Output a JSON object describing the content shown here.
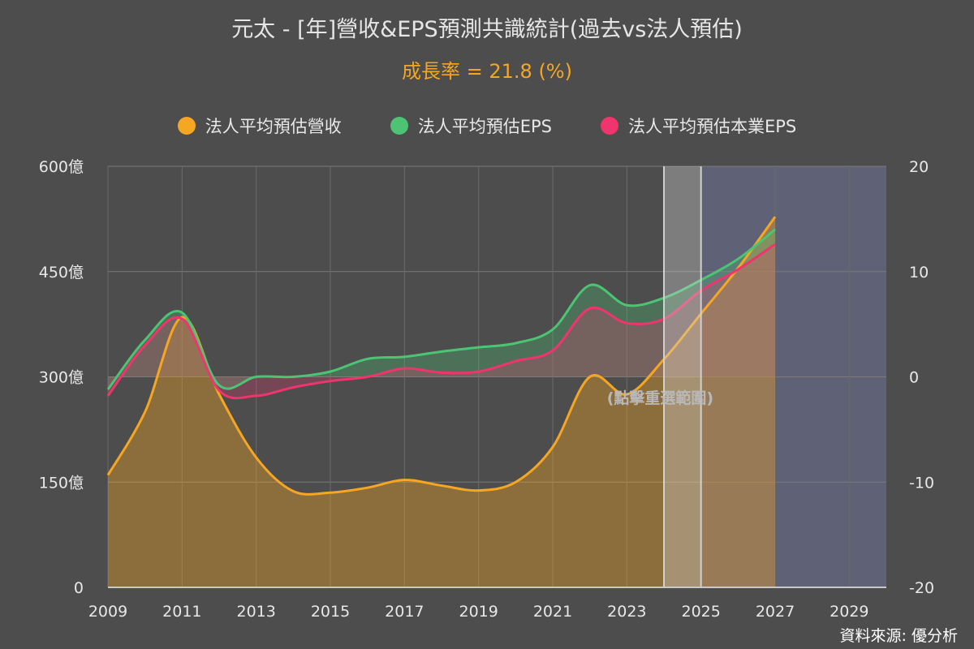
{
  "title": "元太 - [年]營收&EPS預測共識統計(過去vs法人預估)",
  "subtitle": "成長率 = 21.8 (%)",
  "legend": [
    {
      "label": "法人平均預估營收",
      "color": "#f5a623"
    },
    {
      "label": "法人平均預估EPS",
      "color": "#4cc474"
    },
    {
      "label": "法人平均預估本業EPS",
      "color": "#f0346e"
    }
  ],
  "source": "資料來源: 優分析",
  "hint": "(點擊重選範圍)",
  "chart_data": {
    "type": "area",
    "x_ticks": [
      "2009",
      "2011",
      "2013",
      "2015",
      "2017",
      "2019",
      "2021",
      "2023",
      "2025",
      "2027",
      "2029"
    ],
    "xlim": [
      2009,
      2030
    ],
    "y_left": {
      "ticks": [
        "0",
        "150億",
        "300億",
        "450億",
        "600億"
      ],
      "lim": [
        0,
        600
      ]
    },
    "y_right": {
      "ticks": [
        "-20",
        "-10",
        "0",
        "10",
        "20"
      ],
      "lim": [
        -20,
        20
      ]
    },
    "selection_range": [
      2024,
      2025
    ],
    "forecast_region": [
      2025,
      2030
    ],
    "series": [
      {
        "name": "法人平均預估營收",
        "axis": "left",
        "color": "#f5a623",
        "x": [
          2009,
          2010,
          2011,
          2012,
          2013,
          2014,
          2015,
          2016,
          2017,
          2018,
          2019,
          2020,
          2021,
          2022,
          2023,
          2024,
          2025,
          2026,
          2027
        ],
        "values": [
          160,
          250,
          385,
          275,
          185,
          137,
          135,
          142,
          153,
          145,
          138,
          150,
          200,
          300,
          275,
          325,
          390,
          455,
          528
        ]
      },
      {
        "name": "法人平均預估EPS",
        "axis": "right",
        "color": "#4cc474",
        "x": [
          2009,
          2010,
          2011,
          2012,
          2013,
          2014,
          2015,
          2016,
          2017,
          2018,
          2019,
          2020,
          2021,
          2022,
          2023,
          2024,
          2025,
          2026,
          2027
        ],
        "values": [
          -1.2,
          3.5,
          6.1,
          -0.8,
          0.0,
          0.0,
          0.5,
          1.7,
          1.9,
          2.4,
          2.8,
          3.2,
          4.5,
          8.7,
          6.8,
          7.5,
          9.2,
          11.2,
          14.0
        ]
      },
      {
        "name": "法人平均預估本業EPS",
        "axis": "right",
        "color": "#f0346e",
        "x": [
          2009,
          2010,
          2011,
          2012,
          2013,
          2014,
          2015,
          2016,
          2017,
          2018,
          2019,
          2020,
          2021,
          2022,
          2023,
          2024,
          2025,
          2026,
          2027
        ],
        "values": [
          -1.8,
          3.0,
          5.5,
          -1.3,
          -1.8,
          -1.0,
          -0.4,
          0.0,
          0.8,
          0.4,
          0.5,
          1.5,
          2.5,
          6.5,
          5.1,
          5.5,
          8.2,
          10.2,
          12.6
        ]
      }
    ]
  }
}
